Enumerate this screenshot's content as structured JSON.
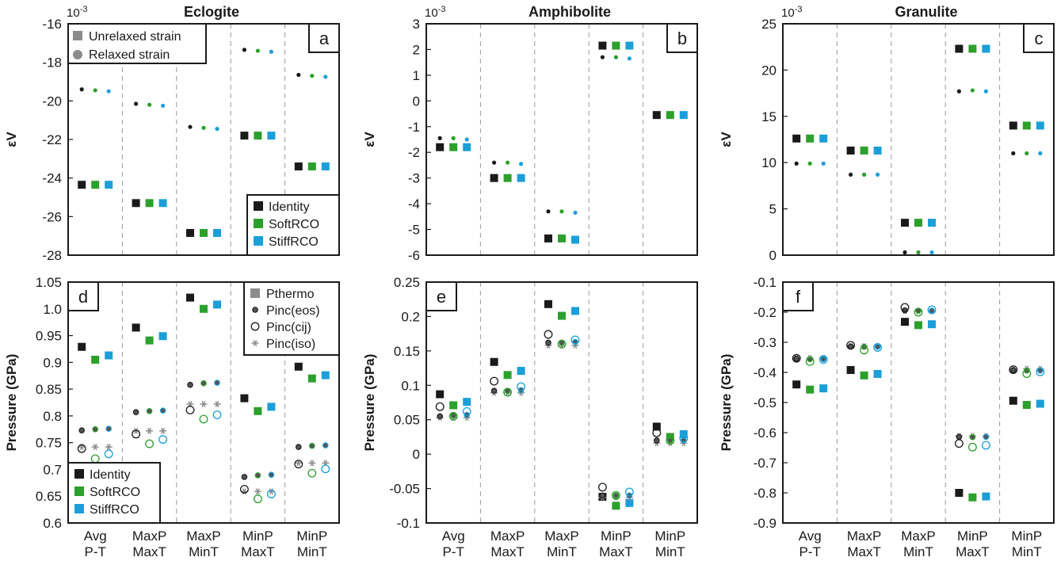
{
  "categories": [
    [
      "Avg",
      "P-T"
    ],
    [
      "MaxP",
      "MaxT"
    ],
    [
      "MaxP",
      "MinT"
    ],
    [
      "MinP",
      "MaxT"
    ],
    [
      "MinP",
      "MinT"
    ]
  ],
  "colors": {
    "Identity": "#1a1a1a",
    "SoftRCO": "#2ca02c",
    "StiffRCO": "#1a9fd9",
    "grey": "#8c8c8c"
  },
  "legends": {
    "strain_types": [
      "Unrelaxed strain",
      "Relaxed strain"
    ],
    "models": [
      "Identity",
      "SoftRCO",
      "StiffRCO"
    ],
    "pressure_types": [
      "Pthermo",
      "Pinc(eos)",
      "Pinc(cij)",
      "Pinc(iso)"
    ]
  },
  "chart_data": [
    {
      "panel": "a",
      "type": "scatter",
      "title": "Eclogite",
      "exponent": "10-3",
      "ylabel": "εV",
      "ylim": [
        -28,
        -16
      ],
      "yticks": [
        -16,
        -18,
        -20,
        -22,
        -24,
        -26,
        -28
      ],
      "series": [
        {
          "name": "Identity",
          "kind": "unrelaxed",
          "values": [
            -24.35,
            -25.3,
            -26.85,
            -21.8,
            -23.4
          ]
        },
        {
          "name": "SoftRCO",
          "kind": "unrelaxed",
          "values": [
            -24.35,
            -25.3,
            -26.85,
            -21.8,
            -23.4
          ]
        },
        {
          "name": "StiffRCO",
          "kind": "unrelaxed",
          "values": [
            -24.35,
            -25.3,
            -26.85,
            -21.8,
            -23.4
          ]
        },
        {
          "name": "Identity",
          "kind": "relaxed",
          "values": [
            -19.4,
            -20.15,
            -21.35,
            -17.35,
            -18.65
          ]
        },
        {
          "name": "SoftRCO",
          "kind": "relaxed",
          "values": [
            -19.45,
            -20.2,
            -21.4,
            -17.4,
            -18.7
          ]
        },
        {
          "name": "StiffRCO",
          "kind": "relaxed",
          "values": [
            -19.5,
            -20.25,
            -21.45,
            -17.45,
            -18.75
          ]
        }
      ]
    },
    {
      "panel": "b",
      "type": "scatter",
      "title": "Amphibolite",
      "exponent": "10-3",
      "ylabel": "εV",
      "ylim": [
        -6,
        3
      ],
      "yticks": [
        3,
        2,
        1,
        0,
        -1,
        -2,
        -3,
        -4,
        -5,
        -6
      ],
      "series": [
        {
          "name": "Identity",
          "kind": "unrelaxed",
          "values": [
            -1.8,
            -3.0,
            -5.35,
            2.15,
            -0.55
          ]
        },
        {
          "name": "SoftRCO",
          "kind": "unrelaxed",
          "values": [
            -1.8,
            -3.0,
            -5.35,
            2.15,
            -0.55
          ]
        },
        {
          "name": "StiffRCO",
          "kind": "unrelaxed",
          "values": [
            -1.8,
            -3.0,
            -5.4,
            2.15,
            -0.55
          ]
        },
        {
          "name": "Identity",
          "kind": "relaxed",
          "values": [
            -1.45,
            -2.4,
            -4.3,
            1.7,
            -0.55
          ]
        },
        {
          "name": "SoftRCO",
          "kind": "relaxed",
          "values": [
            -1.45,
            -2.4,
            -4.3,
            1.7,
            -0.55
          ]
        },
        {
          "name": "StiffRCO",
          "kind": "relaxed",
          "values": [
            -1.5,
            -2.45,
            -4.35,
            1.65,
            -0.55
          ]
        }
      ]
    },
    {
      "panel": "c",
      "type": "scatter",
      "title": "Granulite",
      "exponent": "10-3",
      "ylabel": "εV",
      "ylim": [
        0,
        25
      ],
      "yticks": [
        25,
        20,
        15,
        10,
        5,
        0
      ],
      "series": [
        {
          "name": "Identity",
          "kind": "unrelaxed",
          "values": [
            12.6,
            11.3,
            3.5,
            22.3,
            14.0
          ]
        },
        {
          "name": "SoftRCO",
          "kind": "unrelaxed",
          "values": [
            12.6,
            11.3,
            3.5,
            22.3,
            14.0
          ]
        },
        {
          "name": "StiffRCO",
          "kind": "unrelaxed",
          "values": [
            12.6,
            11.3,
            3.5,
            22.3,
            14.0
          ]
        },
        {
          "name": "Identity",
          "kind": "relaxed",
          "values": [
            9.9,
            8.7,
            0.3,
            17.7,
            11.0
          ]
        },
        {
          "name": "SoftRCO",
          "kind": "relaxed",
          "values": [
            9.9,
            8.7,
            0.3,
            17.8,
            11.0
          ]
        },
        {
          "name": "StiffRCO",
          "kind": "relaxed",
          "values": [
            9.9,
            8.7,
            0.3,
            17.7,
            11.0
          ]
        }
      ]
    },
    {
      "panel": "d",
      "type": "scatter",
      "title": "",
      "ylabel": "Pressure (GPa)",
      "ylim": [
        0.6,
        1.05
      ],
      "yticks": [
        1.05,
        1.0,
        0.95,
        0.9,
        0.85,
        0.8,
        0.75,
        0.7,
        0.65,
        0.6
      ],
      "ytick_labels": [
        "1.05",
        "1.0",
        "0.95",
        "0.9",
        "0.85",
        "0.8",
        "0.75",
        "0.7",
        "0.65",
        "0.6"
      ],
      "series": [
        {
          "name": "Identity",
          "kind": "Pthermo",
          "values": [
            0.929,
            0.965,
            1.021,
            0.833,
            0.892
          ]
        },
        {
          "name": "SoftRCO",
          "kind": "Pthermo",
          "values": [
            0.905,
            0.941,
            1.0,
            0.809,
            0.87
          ]
        },
        {
          "name": "StiffRCO",
          "kind": "Pthermo",
          "values": [
            0.913,
            0.949,
            1.008,
            0.817,
            0.876
          ]
        },
        {
          "name": "Identity",
          "kind": "Pinc(eos)",
          "values": [
            0.773,
            0.807,
            0.858,
            0.686,
            0.742
          ]
        },
        {
          "name": "SoftRCO",
          "kind": "Pinc(eos)",
          "values": [
            0.775,
            0.809,
            0.861,
            0.689,
            0.744
          ]
        },
        {
          "name": "StiffRCO",
          "kind": "Pinc(eos)",
          "values": [
            0.776,
            0.81,
            0.862,
            0.69,
            0.745
          ]
        },
        {
          "name": "Identity",
          "kind": "Pinc(cij)",
          "values": [
            0.739,
            0.766,
            0.811,
            0.663,
            0.71
          ]
        },
        {
          "name": "SoftRCO",
          "kind": "Pinc(cij)",
          "values": [
            0.72,
            0.748,
            0.794,
            0.645,
            0.693
          ]
        },
        {
          "name": "StiffRCO",
          "kind": "Pinc(cij)",
          "values": [
            0.729,
            0.756,
            0.802,
            0.654,
            0.701
          ]
        },
        {
          "name": "Identity",
          "kind": "Pinc(iso)",
          "values": [
            0.742,
            0.772,
            0.822,
            0.659,
            0.712
          ]
        },
        {
          "name": "SoftRCO",
          "kind": "Pinc(iso)",
          "values": [
            0.742,
            0.772,
            0.822,
            0.659,
            0.712
          ]
        },
        {
          "name": "StiffRCO",
          "kind": "Pinc(iso)",
          "values": [
            0.742,
            0.772,
            0.822,
            0.659,
            0.712
          ]
        }
      ]
    },
    {
      "panel": "e",
      "type": "scatter",
      "title": "",
      "ylabel": "Pressure (GPa)",
      "ylim": [
        -0.1,
        0.25
      ],
      "yticks": [
        0.25,
        0.2,
        0.15,
        0.1,
        0.05,
        0,
        -0.05,
        -0.1
      ],
      "ytick_labels": [
        "0.25",
        "0.2",
        "0.15",
        "0.1",
        "0.05",
        "0",
        "-0.05",
        "-0.1"
      ],
      "series": [
        {
          "name": "Identity",
          "kind": "Pthermo",
          "values": [
            0.087,
            0.134,
            0.218,
            -0.062,
            0.04
          ]
        },
        {
          "name": "SoftRCO",
          "kind": "Pthermo",
          "values": [
            0.071,
            0.115,
            0.201,
            -0.075,
            0.025
          ]
        },
        {
          "name": "StiffRCO",
          "kind": "Pthermo",
          "values": [
            0.076,
            0.121,
            0.208,
            -0.071,
            0.029
          ]
        },
        {
          "name": "Identity",
          "kind": "Pinc(eos)",
          "values": [
            0.055,
            0.092,
            0.162,
            -0.06,
            0.02
          ]
        },
        {
          "name": "SoftRCO",
          "kind": "Pinc(eos)",
          "values": [
            0.056,
            0.092,
            0.162,
            -0.06,
            0.02
          ]
        },
        {
          "name": "StiffRCO",
          "kind": "Pinc(eos)",
          "values": [
            0.057,
            0.093,
            0.163,
            -0.06,
            0.02
          ]
        },
        {
          "name": "Identity",
          "kind": "Pinc(cij)",
          "values": [
            0.069,
            0.106,
            0.174,
            -0.048,
            0.031
          ]
        },
        {
          "name": "SoftRCO",
          "kind": "Pinc(cij)",
          "values": [
            0.055,
            0.09,
            0.16,
            -0.06,
            0.02
          ]
        },
        {
          "name": "StiffRCO",
          "kind": "Pinc(cij)",
          "values": [
            0.062,
            0.098,
            0.166,
            -0.055,
            0.023
          ]
        },
        {
          "name": "Identity",
          "kind": "Pinc(iso)",
          "values": [
            0.053,
            0.089,
            0.158,
            -0.063,
            0.016
          ]
        },
        {
          "name": "SoftRCO",
          "kind": "Pinc(iso)",
          "values": [
            0.053,
            0.089,
            0.158,
            -0.063,
            0.016
          ]
        },
        {
          "name": "StiffRCO",
          "kind": "Pinc(iso)",
          "values": [
            0.053,
            0.089,
            0.158,
            -0.063,
            0.016
          ]
        }
      ]
    },
    {
      "panel": "f",
      "type": "scatter",
      "title": "",
      "ylabel": "Pressure (GPa)",
      "ylim": [
        -0.9,
        -0.1
      ],
      "yticks": [
        -0.1,
        -0.2,
        -0.3,
        -0.4,
        -0.5,
        -0.6,
        -0.7,
        -0.8,
        -0.9
      ],
      "ytick_labels": [
        "-0.1",
        "-0.2",
        "-0.3",
        "-0.4",
        "-0.5",
        "-0.6",
        "-0.7",
        "-0.8",
        "-0.9"
      ],
      "series": [
        {
          "name": "Identity",
          "kind": "Pthermo",
          "values": [
            -0.44,
            -0.392,
            -0.232,
            -0.8,
            -0.494
          ]
        },
        {
          "name": "SoftRCO",
          "kind": "Pthermo",
          "values": [
            -0.457,
            -0.41,
            -0.243,
            -0.815,
            -0.508
          ]
        },
        {
          "name": "StiffRCO",
          "kind": "Pthermo",
          "values": [
            -0.453,
            -0.405,
            -0.24,
            -0.812,
            -0.504
          ]
        },
        {
          "name": "Identity",
          "kind": "Pinc(eos)",
          "values": [
            -0.354,
            -0.314,
            -0.194,
            -0.614,
            -0.393
          ]
        },
        {
          "name": "SoftRCO",
          "kind": "Pinc(eos)",
          "values": [
            -0.356,
            -0.315,
            -0.195,
            -0.615,
            -0.394
          ]
        },
        {
          "name": "StiffRCO",
          "kind": "Pinc(eos)",
          "values": [
            -0.356,
            -0.315,
            -0.195,
            -0.614,
            -0.394
          ]
        },
        {
          "name": "Identity",
          "kind": "Pinc(cij)",
          "values": [
            -0.353,
            -0.31,
            -0.184,
            -0.636,
            -0.391
          ]
        },
        {
          "name": "SoftRCO",
          "kind": "Pinc(cij)",
          "values": [
            -0.364,
            -0.326,
            -0.2,
            -0.648,
            -0.404
          ]
        },
        {
          "name": "StiffRCO",
          "kind": "Pinc(cij)",
          "values": [
            -0.357,
            -0.317,
            -0.192,
            -0.642,
            -0.398
          ]
        },
        {
          "name": "Identity",
          "kind": "Pinc(iso)",
          "values": [
            -0.352,
            -0.313,
            -0.196,
            -0.611,
            -0.388
          ]
        },
        {
          "name": "SoftRCO",
          "kind": "Pinc(iso)",
          "values": [
            -0.352,
            -0.313,
            -0.196,
            -0.611,
            -0.388
          ]
        },
        {
          "name": "StiffRCO",
          "kind": "Pinc(iso)",
          "values": [
            -0.352,
            -0.313,
            -0.196,
            -0.611,
            -0.388
          ]
        }
      ]
    }
  ]
}
